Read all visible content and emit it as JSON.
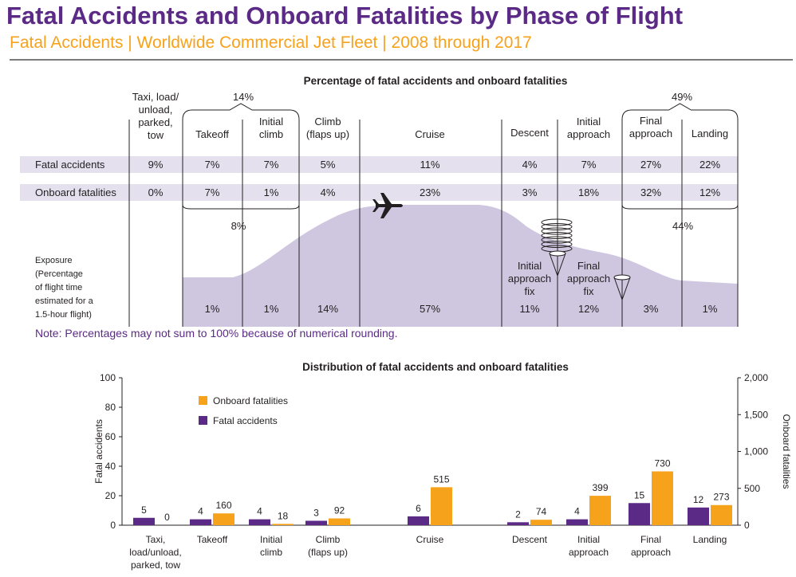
{
  "title": "Fatal Accidents and Onboard Fatalities by Phase of Flight",
  "subtitle": "Fatal Accidents | Worldwide Commercial Jet Fleet | 2008 through 2017",
  "note": "Note: Percentages may not sum to 100% because of numerical rounding.",
  "colors": {
    "title": "#5b2a86",
    "subtitle": "#f7a21b",
    "fatal_accidents": "#5b2a86",
    "onboard_fatalities": "#f7a21b",
    "exposure_fill": "#cfc6e0",
    "row_band": "#e5e0ee"
  },
  "chart_data": [
    {
      "type": "table",
      "title": "Percentage of fatal accidents and onboard fatalities",
      "phases": [
        "Taxi, load/ unload, parked, tow",
        "Takeoff",
        "Initial climb",
        "Climb (flaps up)",
        "Cruise",
        "Descent",
        "Initial approach",
        "Final approach",
        "Landing"
      ],
      "rows": [
        {
          "label": "Fatal accidents",
          "values": [
            "9%",
            "7%",
            "7%",
            "5%",
            "11%",
            "4%",
            "7%",
            "27%",
            "22%"
          ]
        },
        {
          "label": "Onboard fatalities",
          "values": [
            "0%",
            "7%",
            "1%",
            "4%",
            "23%",
            "3%",
            "18%",
            "32%",
            "12%"
          ]
        }
      ],
      "groups": [
        {
          "label": "14%",
          "covers": [
            "Takeoff",
            "Initial climb"
          ],
          "row": "Fatal accidents"
        },
        {
          "label": "8%",
          "covers": [
            "Takeoff",
            "Initial climb"
          ],
          "row": "Onboard fatalities"
        },
        {
          "label": "49%",
          "covers": [
            "Final approach",
            "Landing"
          ],
          "row": "Fatal accidents"
        },
        {
          "label": "44%",
          "covers": [
            "Final approach",
            "Landing"
          ],
          "row": "Onboard fatalities"
        }
      ],
      "exposure": {
        "label": "Exposure (Percentage of flight time estimated for a 1.5-hour flight)",
        "label_lines": [
          "Exposure",
          "(Percentage",
          "of flight time",
          "estimated for a",
          "1.5-hour flight)"
        ],
        "values": [
          "1%",
          "1%",
          "14%",
          "57%",
          "11%",
          "12%",
          "3%",
          "1%"
        ]
      },
      "fixes": [
        "Initial approach fix",
        "Final approach fix"
      ]
    },
    {
      "type": "bar",
      "title": "Distribution of fatal accidents and onboard fatalities",
      "categories": [
        "Taxi, load/unload, parked, tow",
        "Takeoff",
        "Initial climb",
        "Climb (flaps up)",
        "Cruise",
        "Descent",
        "Initial approach",
        "Final approach",
        "Landing"
      ],
      "series": [
        {
          "name": "Fatal accidents",
          "axis": "left",
          "values": [
            5,
            4,
            4,
            3,
            6,
            2,
            4,
            15,
            12
          ]
        },
        {
          "name": "Onboard fatalities",
          "axis": "right",
          "values": [
            0,
            160,
            18,
            92,
            515,
            74,
            399,
            730,
            273
          ]
        }
      ],
      "ylabel": "Fatal accidents",
      "y2label": "Onboard fatalities",
      "ylim": [
        0,
        100
      ],
      "y2lim": [
        0,
        2000
      ],
      "yticks": [
        "0",
        "20",
        "40",
        "60",
        "80",
        "100"
      ],
      "y2ticks": [
        "0",
        "500",
        "1,000",
        "1,500",
        "2,000"
      ],
      "legend": "top-left"
    }
  ]
}
